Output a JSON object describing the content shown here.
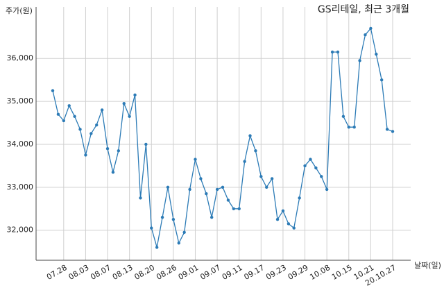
{
  "chart_data": {
    "type": "line",
    "title": "GS리테일, 최근 3개월",
    "y_label": "주가(원)",
    "x_label": "날짜(일)",
    "categories": [
      null,
      null,
      "07.28",
      null,
      null,
      null,
      "08.03",
      null,
      null,
      null,
      "08.07",
      null,
      null,
      null,
      "08.13",
      null,
      null,
      null,
      "08.20",
      null,
      null,
      null,
      "08.26",
      null,
      null,
      null,
      "09.01",
      null,
      null,
      null,
      "09.07",
      null,
      null,
      null,
      "09.11",
      null,
      null,
      null,
      "09.17",
      null,
      null,
      null,
      "09.23",
      null,
      null,
      null,
      "09.29",
      null,
      null,
      null,
      "10.08",
      null,
      null,
      null,
      "10.15",
      null,
      null,
      null,
      "10.21",
      null,
      null,
      null,
      "20.10.27"
    ],
    "series": [
      {
        "name": "GS리테일",
        "color": "#2c7bb6",
        "values": [
          35250,
          34700,
          34550,
          34900,
          34650,
          34350,
          33750,
          34250,
          34450,
          34800,
          33900,
          33350,
          33850,
          34950,
          34650,
          35150,
          32750,
          34000,
          32050,
          31600,
          32300,
          33000,
          32250,
          31700,
          31950,
          32950,
          33650,
          33200,
          32850,
          32300,
          32950,
          33000,
          32700,
          32500,
          32500,
          33600,
          34200,
          33850,
          33250,
          33000,
          33200,
          32250,
          32450,
          32150,
          32050,
          32750,
          33500,
          33650,
          33450,
          33250,
          32950,
          36150,
          36150,
          34650,
          34400,
          34400,
          35950,
          36550,
          36700,
          36100,
          35500,
          34350,
          34300
        ]
      }
    ],
    "ylim": [
      31300,
      37200
    ],
    "yticks": [
      {
        "value": 32000,
        "label": "32,000"
      },
      {
        "value": 33000,
        "label": "33,000"
      },
      {
        "value": 34000,
        "label": "34,000"
      },
      {
        "value": 35000,
        "label": "35,000"
      },
      {
        "value": 36000,
        "label": "36,000"
      }
    ],
    "grid": true
  }
}
